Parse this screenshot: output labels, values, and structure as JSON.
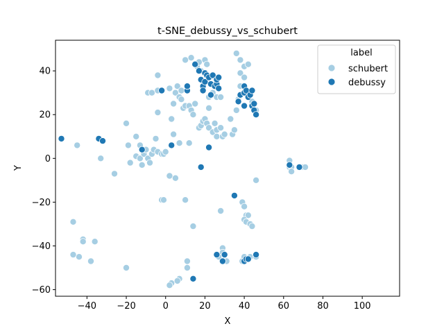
{
  "chart_data": {
    "type": "scatter",
    "title": "t-SNE_debussy_vs_schubert",
    "xlabel": "X",
    "ylabel": "Y",
    "xlim": [
      -56,
      119
    ],
    "ylim": [
      -63,
      54
    ],
    "xticks": [
      -40,
      -20,
      0,
      20,
      40,
      60,
      80,
      100
    ],
    "yticks": [
      -60,
      -40,
      -20,
      0,
      20,
      40
    ],
    "xtick_labels": [
      "−40",
      "−20",
      "0",
      "20",
      "40",
      "60",
      "80",
      "100"
    ],
    "ytick_labels": [
      "−60",
      "−40",
      "−20",
      "0",
      "20",
      "40"
    ],
    "grid": false,
    "legend": {
      "title": "label",
      "position": "top-right"
    },
    "series": [
      {
        "name": "schubert",
        "color": "#a6cee3",
        "points": [
          [
            -45,
            6
          ],
          [
            -20,
            16
          ],
          [
            -19,
            6
          ],
          [
            -18,
            -2
          ],
          [
            -15,
            10
          ],
          [
            -15,
            1
          ],
          [
            -13,
            6
          ],
          [
            -13,
            0
          ],
          [
            -12,
            -3
          ],
          [
            -11,
            2
          ],
          [
            -10,
            4
          ],
          [
            -9,
            0
          ],
          [
            -8,
            -2
          ],
          [
            -7,
            2
          ],
          [
            -6,
            4
          ],
          [
            -5,
            9
          ],
          [
            -4,
            3
          ],
          [
            -2,
            2
          ],
          [
            -1,
            2
          ],
          [
            0,
            3
          ],
          [
            -9,
            30
          ],
          [
            -7,
            30
          ],
          [
            -4,
            31
          ],
          [
            -4,
            21
          ],
          [
            -4,
            38
          ],
          [
            2,
            32
          ],
          [
            3,
            18
          ],
          [
            4,
            11
          ],
          [
            4,
            25
          ],
          [
            5,
            30
          ],
          [
            6,
            33
          ],
          [
            7,
            28
          ],
          [
            8,
            27
          ],
          [
            8,
            31
          ],
          [
            9,
            23
          ],
          [
            10,
            24
          ],
          [
            12,
            24
          ],
          [
            13,
            22
          ],
          [
            14,
            20
          ],
          [
            15,
            25
          ],
          [
            17,
            14
          ],
          [
            18,
            15
          ],
          [
            19,
            17
          ],
          [
            20,
            18
          ],
          [
            21,
            16
          ],
          [
            22,
            14
          ],
          [
            22,
            23
          ],
          [
            24,
            12
          ],
          [
            25,
            16
          ],
          [
            26,
            13
          ],
          [
            26,
            10
          ],
          [
            28,
            14
          ],
          [
            29,
            10
          ],
          [
            30,
            11
          ],
          [
            33,
            18
          ],
          [
            34,
            11
          ],
          [
            35,
            13
          ],
          [
            36,
            22
          ],
          [
            38,
            33
          ],
          [
            37,
            27
          ],
          [
            10,
            45
          ],
          [
            13,
            46
          ],
          [
            16,
            42
          ],
          [
            17,
            44
          ],
          [
            18,
            40
          ],
          [
            20,
            45
          ],
          [
            21,
            43
          ],
          [
            22,
            28
          ],
          [
            24,
            30
          ],
          [
            26,
            28
          ],
          [
            28,
            28
          ],
          [
            36,
            48
          ],
          [
            38,
            39
          ],
          [
            38,
            45
          ],
          [
            40,
            42
          ],
          [
            40,
            37
          ],
          [
            42,
            43
          ],
          [
            44,
            26
          ],
          [
            45,
            25
          ],
          [
            46,
            22
          ],
          [
            46,
            -10
          ],
          [
            39,
            -20
          ],
          [
            40,
            -22
          ],
          [
            28,
            -24
          ],
          [
            41,
            -26
          ],
          [
            42,
            -26
          ],
          [
            40,
            -28
          ],
          [
            41,
            -29
          ],
          [
            43,
            -30
          ],
          [
            44,
            -31
          ],
          [
            14,
            -31
          ],
          [
            29,
            -41
          ],
          [
            29,
            -43
          ],
          [
            27,
            -45
          ],
          [
            31,
            -47
          ],
          [
            39,
            -47
          ],
          [
            40,
            -45
          ],
          [
            42,
            -46
          ],
          [
            43,
            -45
          ],
          [
            46,
            -45
          ],
          [
            63,
            -1
          ],
          [
            63,
            -4
          ],
          [
            64,
            -4
          ],
          [
            64,
            -6
          ],
          [
            70,
            -4
          ],
          [
            71,
            -4
          ],
          [
            -26,
            -7
          ],
          [
            -33,
            0
          ],
          [
            -53,
            9
          ],
          [
            5,
            -9
          ],
          [
            2,
            -8
          ],
          [
            -2,
            -19
          ],
          [
            -1,
            -19
          ],
          [
            10,
            -19
          ],
          [
            -47,
            -29
          ],
          [
            -42,
            -37
          ],
          [
            -42,
            -38
          ],
          [
            -36,
            -38
          ],
          [
            -44,
            -45
          ],
          [
            -47,
            -44
          ],
          [
            -38,
            -47
          ],
          [
            -20,
            -50
          ],
          [
            11,
            -47
          ],
          [
            11,
            -50
          ],
          [
            7,
            -55
          ],
          [
            6,
            -56
          ],
          [
            3,
            -57
          ],
          [
            2,
            -58
          ],
          [
            12,
            7
          ],
          [
            7,
            7
          ]
        ]
      },
      {
        "name": "debussy",
        "color": "#1f78b4",
        "points": [
          [
            -53,
            9
          ],
          [
            -34,
            9
          ],
          [
            -32,
            8
          ],
          [
            -12,
            4
          ],
          [
            3,
            6
          ],
          [
            -2,
            31
          ],
          [
            11,
            31
          ],
          [
            11,
            33
          ],
          [
            15,
            43
          ],
          [
            17,
            40
          ],
          [
            18,
            36
          ],
          [
            19,
            33
          ],
          [
            19,
            31
          ],
          [
            20,
            35
          ],
          [
            20,
            39
          ],
          [
            21,
            38
          ],
          [
            22,
            37
          ],
          [
            23,
            34
          ],
          [
            23,
            29
          ],
          [
            24,
            38
          ],
          [
            25,
            33
          ],
          [
            26,
            34
          ],
          [
            26,
            36
          ],
          [
            27,
            37
          ],
          [
            27,
            32
          ],
          [
            37,
            26
          ],
          [
            38,
            29
          ],
          [
            40,
            24
          ],
          [
            40,
            30
          ],
          [
            40,
            33
          ],
          [
            41,
            31
          ],
          [
            42,
            28
          ],
          [
            43,
            29
          ],
          [
            44,
            24
          ],
          [
            45,
            25
          ],
          [
            45,
            22
          ],
          [
            46,
            20
          ],
          [
            44,
            31
          ],
          [
            18,
            -4
          ],
          [
            22,
            5
          ],
          [
            35,
            -17
          ],
          [
            26,
            -44
          ],
          [
            29,
            -47
          ],
          [
            30,
            -44
          ],
          [
            40,
            -47
          ],
          [
            41,
            -46
          ],
          [
            42,
            -46
          ],
          [
            46,
            -44
          ],
          [
            14,
            -55
          ],
          [
            63,
            -3
          ],
          [
            68,
            -4
          ]
        ]
      }
    ]
  }
}
